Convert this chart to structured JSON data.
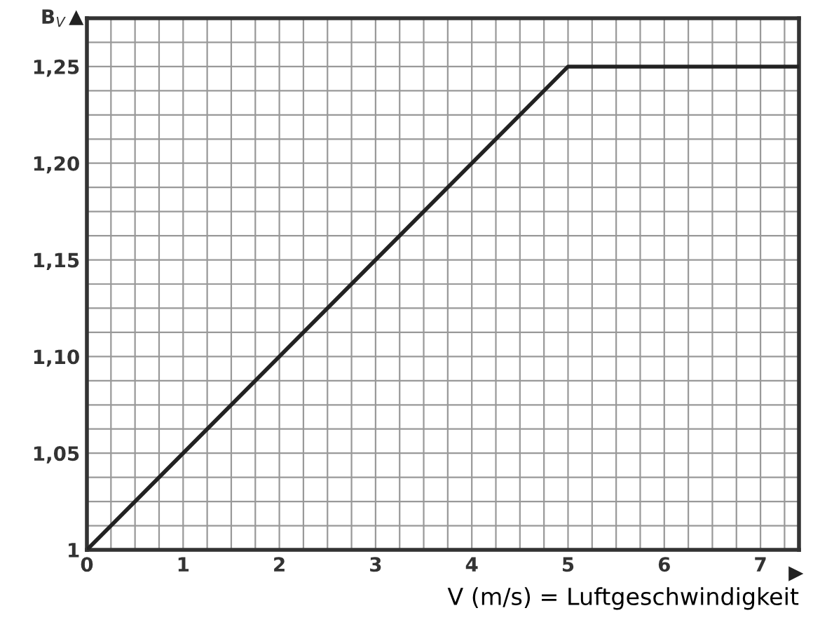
{
  "chart_data": {
    "type": "line",
    "x": [
      0,
      5,
      7.4
    ],
    "series": [
      {
        "color": "#222222",
        "values": [
          1,
          1.25,
          1.25
        ]
      }
    ],
    "ylabel": "B$_{V}$",
    "xlabel": "V (m/s) = Luftgeschwindigkeit",
    "xlim": [
      0,
      7.4
    ],
    "ylim": [
      1,
      1.275
    ],
    "xticks": [
      0,
      {
        "value": 0.25,
        "label": null
      },
      {
        "value": 0.5,
        "label": null
      },
      {
        "value": 0.75,
        "label": null
      },
      1,
      {
        "value": 1.25,
        "label": null
      },
      {
        "value": 1.5,
        "label": null
      },
      {
        "value": 1.75,
        "label": null
      },
      2,
      {
        "value": 2.25,
        "label": null
      },
      {
        "value": 2.5,
        "label": null
      },
      {
        "value": 2.75,
        "label": null
      },
      3,
      {
        "value": 3.25,
        "label": null
      },
      {
        "value": 3.5,
        "label": null
      },
      {
        "value": 3.75,
        "label": null
      },
      4,
      {
        "value": 4.25,
        "label": null
      },
      {
        "value": 4.5,
        "label": null
      },
      {
        "value": 4.75,
        "label": null
      },
      5,
      {
        "value": 5.25,
        "label": null
      },
      {
        "value": 5.5,
        "label": null
      },
      {
        "value": 5.75,
        "label": null
      },
      6,
      {
        "value": 6.25,
        "label": null
      },
      {
        "value": 6.5,
        "label": null
      },
      {
        "value": 6.75,
        "label": null
      },
      7,
      {
        "value": 7.25,
        "label": null
      }
    ],
    "yticks": [
      1,
      {
        "value": 1.0125,
        "label": null
      },
      {
        "value": 1.025,
        "label": null
      },
      {
        "value": 1.0375,
        "label": null
      },
      {
        "value": 1.05,
        "label": "1,05"
      },
      {
        "value": 1.0625,
        "label": null
      },
      {
        "value": 1.075,
        "label": null
      },
      {
        "value": 1.0875,
        "label": null
      },
      {
        "value": 1.1,
        "label": "1,10"
      },
      {
        "value": 1.1125,
        "label": null
      },
      {
        "value": 1.125,
        "label": null
      },
      {
        "value": 1.1375,
        "label": null
      },
      {
        "value": 1.15,
        "label": "1,15"
      },
      {
        "value": 1.1625,
        "label": null
      },
      {
        "value": 1.175,
        "label": null
      },
      {
        "value": 1.1875,
        "label": null
      },
      {
        "value": 1.2,
        "label": "1,20"
      },
      {
        "value": 1.2125,
        "label": null
      },
      {
        "value": 1.225,
        "label": null
      },
      {
        "value": 1.2375,
        "label": null
      },
      {
        "value": 1.25,
        "label": "1,25"
      },
      {
        "value": 1.2625,
        "label": null
      }
    ],
    "grid": true,
    "marker": "none",
    "line_style": "solid"
  }
}
